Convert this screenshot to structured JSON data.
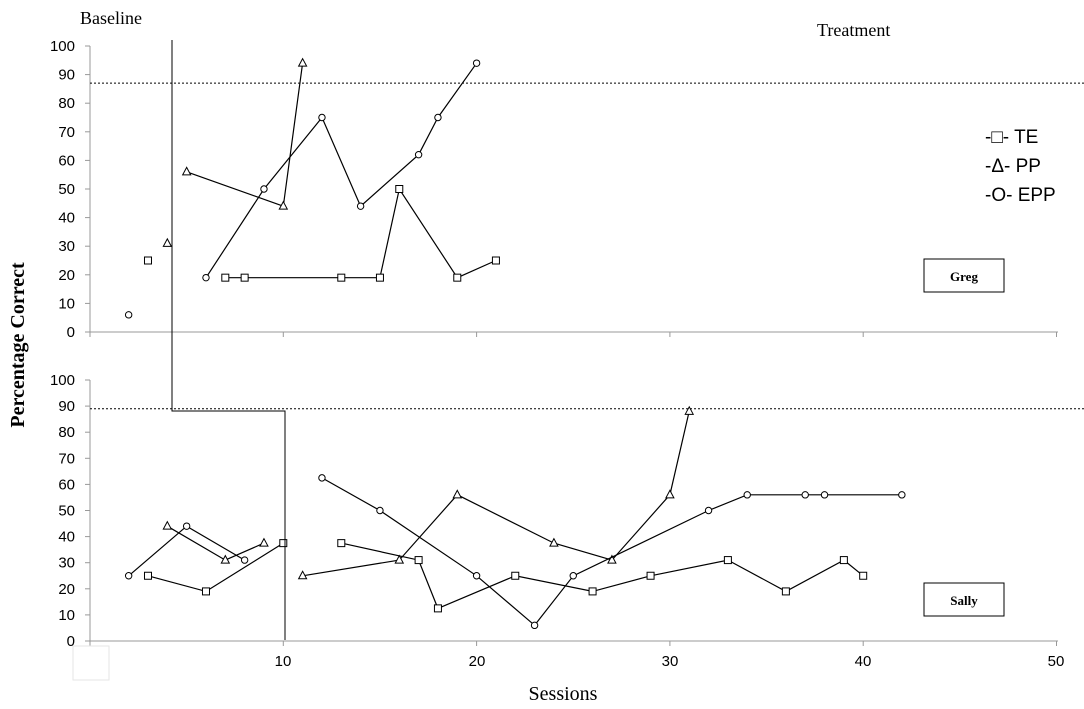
{
  "chart_data": [
    {
      "name": "Greg",
      "type": "line",
      "ylim": [
        0,
        100
      ],
      "yticks": [
        "0",
        "10",
        "20",
        "30",
        "40",
        "50",
        "60",
        "70",
        "80",
        "90",
        "100"
      ],
      "criterion": 87,
      "participant_label": "Greg",
      "series": [
        {
          "key": "TE",
          "marker": "square",
          "baseline": [
            [
              3,
              25
            ]
          ],
          "treatment": [
            [
              7,
              19
            ],
            [
              8,
              19
            ],
            [
              13,
              19
            ],
            [
              15,
              19
            ],
            [
              16,
              50
            ],
            [
              19,
              19
            ],
            [
              21,
              25
            ]
          ]
        },
        {
          "key": "PP",
          "marker": "triangle",
          "baseline": [
            [
              4,
              31
            ]
          ],
          "treatment": [
            [
              5,
              56
            ],
            [
              10,
              44
            ],
            [
              11,
              94
            ]
          ]
        },
        {
          "key": "EPP",
          "marker": "circle",
          "baseline": [
            [
              2,
              6
            ]
          ],
          "treatment": [
            [
              6,
              19
            ],
            [
              9,
              50
            ],
            [
              12,
              75
            ],
            [
              14,
              44
            ],
            [
              17,
              62
            ],
            [
              18,
              75
            ],
            [
              20,
              94
            ]
          ]
        }
      ]
    },
    {
      "name": "Sally",
      "type": "line",
      "ylim": [
        0,
        100
      ],
      "yticks": [
        "0",
        "10",
        "20",
        "30",
        "40",
        "50",
        "60",
        "70",
        "80",
        "90",
        "100"
      ],
      "criterion": 89,
      "participant_label": "Sally",
      "series": [
        {
          "key": "TE",
          "marker": "square",
          "baseline": [
            [
              3,
              25
            ],
            [
              6,
              19
            ],
            [
              10,
              37.5
            ]
          ],
          "treatment": [
            [
              13,
              37.5
            ],
            [
              17,
              31
            ],
            [
              18,
              12.5
            ],
            [
              22,
              25
            ],
            [
              26,
              19
            ],
            [
              29,
              25
            ],
            [
              33,
              31
            ],
            [
              36,
              19
            ],
            [
              39,
              31
            ],
            [
              40,
              25
            ]
          ]
        },
        {
          "key": "PP",
          "marker": "triangle",
          "baseline": [
            [
              4,
              44
            ],
            [
              7,
              31
            ],
            [
              9,
              37.5
            ]
          ],
          "treatment": [
            [
              11,
              25
            ],
            [
              16,
              31
            ],
            [
              19,
              56
            ],
            [
              24,
              37.5
            ],
            [
              27,
              31
            ],
            [
              30,
              56
            ],
            [
              31,
              88
            ]
          ]
        },
        {
          "key": "EPP",
          "marker": "circle",
          "baseline": [
            [
              2,
              25
            ],
            [
              5,
              44
            ],
            [
              8,
              31
            ]
          ],
          "treatment": [
            [
              12,
              62.5
            ],
            [
              15,
              50
            ],
            [
              20,
              25
            ],
            [
              23,
              6
            ],
            [
              25,
              25
            ],
            [
              32,
              50
            ],
            [
              34,
              56
            ],
            [
              37,
              56
            ],
            [
              38,
              56
            ],
            [
              42,
              56
            ]
          ]
        }
      ]
    }
  ],
  "labels": {
    "phase_baseline": "Baseline",
    "phase_treatment": "Treatment",
    "ylabel": "Percentage Correct",
    "xlabel": "Sessions",
    "xticks": [
      "10",
      "20",
      "30",
      "40",
      "50"
    ]
  },
  "legend": [
    {
      "text": "-□- TE"
    },
    {
      "text": "-Δ-  PP"
    },
    {
      "text": "-O-  EPP"
    }
  ]
}
